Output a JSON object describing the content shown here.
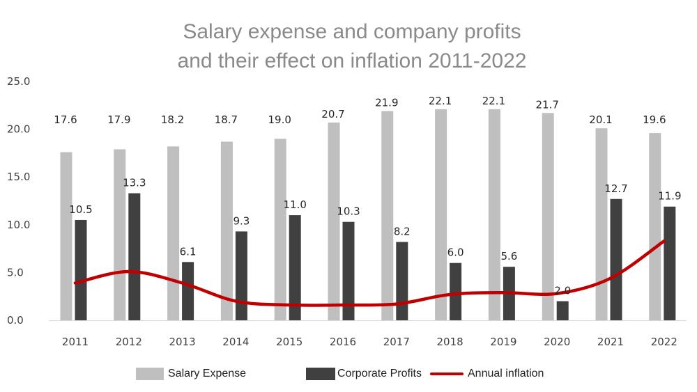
{
  "chart_data": {
    "type": "bar",
    "title_lines": [
      "Salary expense and company profits",
      "and their effect on inflation 2011-2022"
    ],
    "categories": [
      "2011",
      "2012",
      "2013",
      "2014",
      "2015",
      "2016",
      "2017",
      "2018",
      "2019",
      "2020",
      "2021",
      "2022"
    ],
    "series": [
      {
        "name": "Salary Expense",
        "type": "bar",
        "color": "#bfbfbf",
        "values": [
          17.6,
          17.9,
          18.2,
          18.7,
          19.0,
          20.7,
          21.9,
          22.1,
          22.1,
          21.7,
          20.1,
          19.6
        ],
        "labels": [
          "17.6",
          "17.9",
          "18.2",
          "18.7",
          "19.0",
          "20.7",
          "21.9",
          "22.1",
          "22.1",
          "21.7",
          "20.1",
          "19.6"
        ]
      },
      {
        "name": "Corporate Profits",
        "type": "bar",
        "color": "#404040",
        "values": [
          10.5,
          13.3,
          6.1,
          9.3,
          11.0,
          10.3,
          8.2,
          6.0,
          5.6,
          2.0,
          12.7,
          11.9
        ],
        "labels": [
          "10.5",
          "13.3",
          "6.1",
          "9.3",
          "11.0",
          "10.3",
          "8.2",
          "6.0",
          "5.6",
          "2.0",
          "12.7",
          "11.9"
        ]
      },
      {
        "name": "Annual inflation",
        "type": "line",
        "color": "#c00000",
        "values": [
          3.9,
          5.1,
          3.9,
          2.0,
          1.6,
          1.6,
          1.7,
          2.7,
          2.9,
          2.8,
          4.4,
          8.3
        ]
      }
    ],
    "ylim": [
      0,
      25
    ],
    "yticks": [
      "0.0",
      "5.0",
      "10.0",
      "15.0",
      "20.0",
      "25.0"
    ],
    "xlabel": "",
    "ylabel": "",
    "grid": false,
    "legend_position": "bottom"
  }
}
